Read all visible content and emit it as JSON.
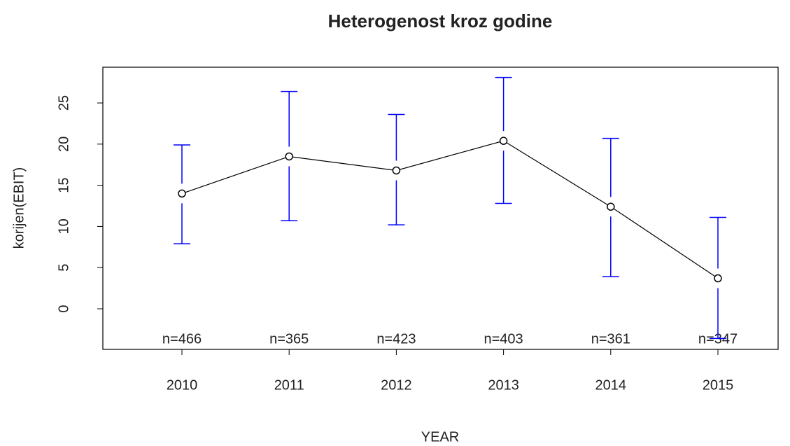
{
  "chart_data": {
    "type": "plotmeans",
    "title": "Heterogenost kroz godine",
    "xlabel": "YEAR",
    "ylabel": "korijen(EBIT)",
    "categories": [
      "2010",
      "2011",
      "2012",
      "2013",
      "2014",
      "2015"
    ],
    "values": [
      14.0,
      18.5,
      16.8,
      20.4,
      12.4,
      3.7
    ],
    "ci_upper": [
      19.9,
      26.4,
      23.6,
      28.1,
      20.7,
      11.1
    ],
    "ci_lower": [
      7.9,
      10.7,
      10.2,
      12.8,
      3.9,
      -3.6
    ],
    "annotations": [
      "n=466",
      "n=365",
      "n=423",
      "n=403",
      "n=361",
      "n=347"
    ],
    "color": "#000000",
    "error_color": "#0000ff",
    "ylim": [
      -4.93,
      29.34
    ],
    "yticks": [
      0,
      5,
      10,
      15,
      20,
      25
    ]
  }
}
